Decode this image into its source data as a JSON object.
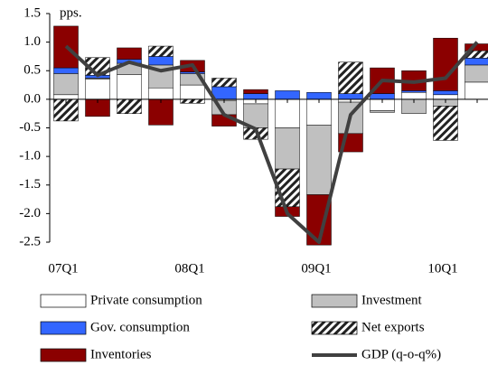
{
  "chart_data": {
    "type": "bar",
    "stacked": true,
    "y_label": "pps.",
    "categories": [
      "07Q1",
      null,
      null,
      null,
      "08Q1",
      null,
      null,
      null,
      "09Q1",
      null,
      null,
      null,
      "10Q1",
      null
    ],
    "ylim": [
      -2.5,
      1.5
    ],
    "yticks": [
      -2.5,
      {
        "value": -2,
        "label": "-2.0"
      },
      -1.5,
      {
        "value": -1,
        "label": "-1.0"
      },
      -0.5,
      {
        "value": 0,
        "label": "0.0"
      },
      0.5,
      {
        "value": 1,
        "label": "1.0"
      },
      1.5
    ],
    "series": [
      {
        "name": "Private consumption",
        "type": "bar",
        "color": "#ffffff",
        "values": [
          0.08,
          0.35,
          0.43,
          0.2,
          0.25,
          -0.02,
          -0.08,
          -0.5,
          -0.45,
          -0.05,
          -0.2,
          0.12,
          0.08,
          0.3
        ]
      },
      {
        "name": "Investment",
        "type": "bar",
        "color": "#c0c0c0",
        "values": [
          0.37,
          0.02,
          0.2,
          0.4,
          0.2,
          -0.25,
          -0.42,
          -0.72,
          -1.22,
          -0.55,
          -0.03,
          -0.25,
          -0.12,
          0.3
        ]
      },
      {
        "name": "Gov. consumption",
        "type": "bar",
        "color": "#3366ff",
        "values": [
          0.1,
          0.05,
          0.07,
          0.15,
          0.03,
          0.22,
          0.1,
          0.15,
          0.12,
          0.1,
          0.1,
          0.03,
          0.07,
          0.12
        ]
      },
      {
        "name": "Net exports",
        "type": "bar",
        "color": "hatch",
        "values": [
          -0.38,
          0.31,
          -0.25,
          0.18,
          -0.07,
          0.15,
          -0.2,
          -0.66,
          0,
          0.55,
          0,
          0,
          -0.6,
          0.13
        ]
      },
      {
        "name": "Inventories",
        "type": "bar",
        "color": "#8b0000",
        "values": [
          0.73,
          -0.3,
          0.2,
          -0.45,
          0.2,
          -0.2,
          0.07,
          -0.17,
          -0.88,
          -0.32,
          0.45,
          0.35,
          0.92,
          0.12
        ]
      },
      {
        "name": "GDP (q-o-q%)",
        "type": "line",
        "color": "#404040",
        "values": [
          0.93,
          0.42,
          0.65,
          0.5,
          0.6,
          -0.27,
          -0.52,
          -2.0,
          -2.5,
          -0.27,
          0.33,
          0.3,
          0.37,
          1.0
        ]
      }
    ]
  }
}
